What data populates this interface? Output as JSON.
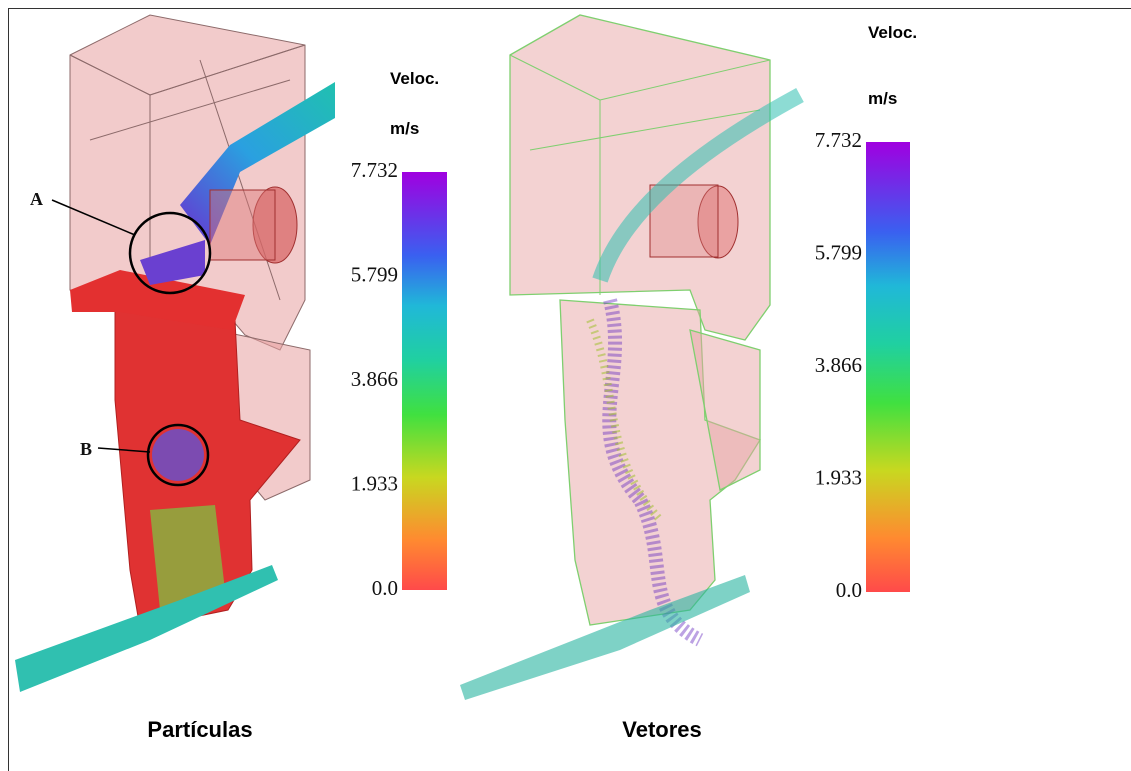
{
  "panels": [
    {
      "caption": "Partículas",
      "annotations": [
        "A",
        "B"
      ],
      "colorbar": {
        "title": "Veloc.",
        "unit": "m/s",
        "ticks": [
          7.732,
          5.799,
          3.866,
          1.933,
          {
            "value": 0,
            "label": "0.0"
          }
        ]
      }
    },
    {
      "caption": "Vetores",
      "colorbar": {
        "title": "Veloc.",
        "unit": "m/s",
        "ticks": [
          7.732,
          5.799,
          3.866,
          1.933,
          {
            "value": 0,
            "label": "0.0"
          }
        ]
      }
    }
  ]
}
